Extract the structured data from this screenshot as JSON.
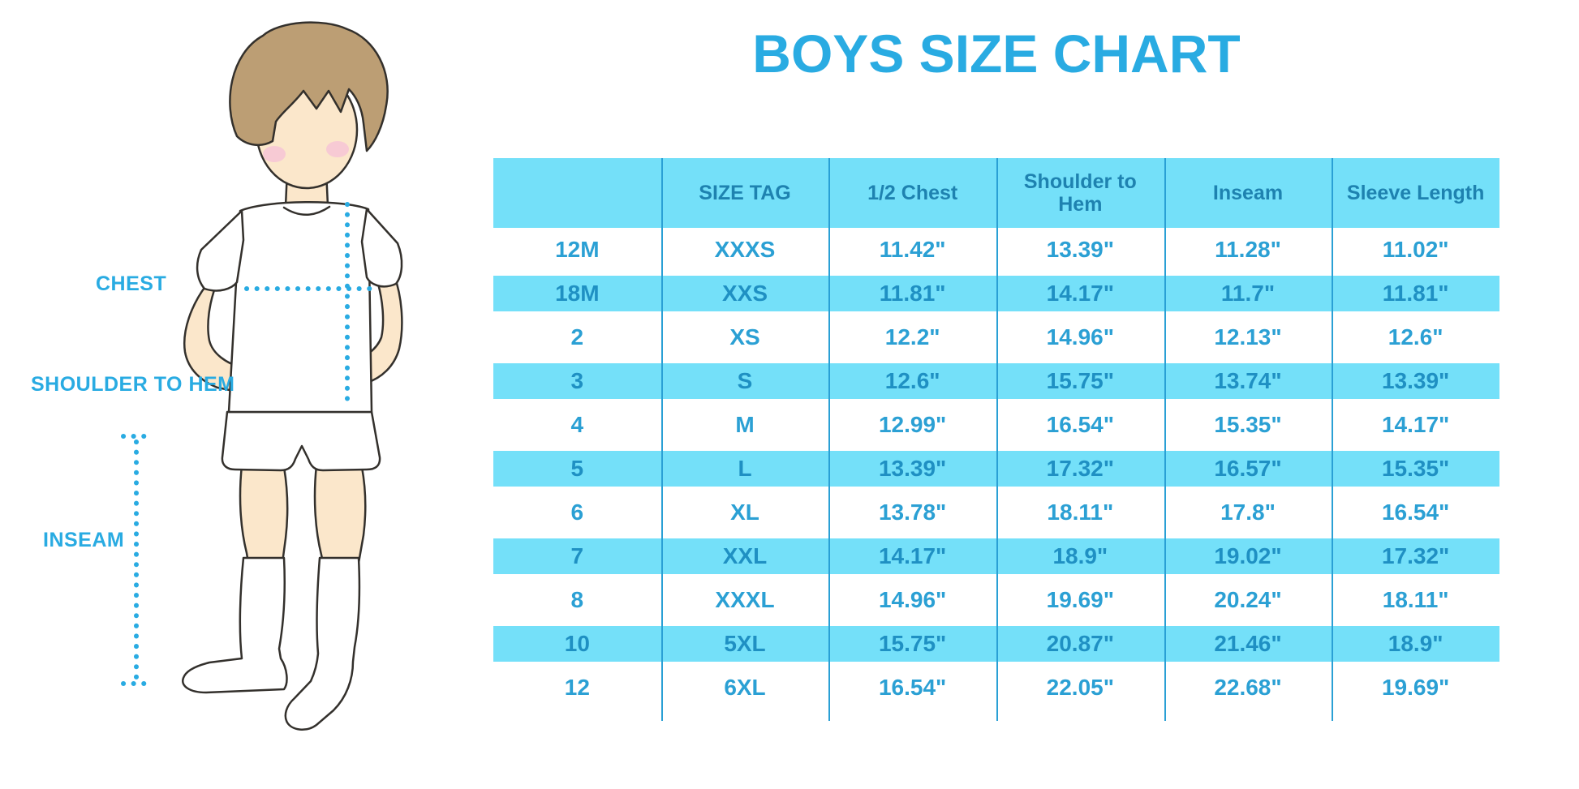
{
  "title": "BOYS SIZE CHART",
  "figure": {
    "labels": {
      "chest": "CHEST",
      "shoulder_to_hem": "SHOULDER TO HEM",
      "inseam": "INSEAM"
    }
  },
  "colors": {
    "accent": "#29ABE2",
    "table_stripe": "#74E0F9",
    "table_divider": "#2AA0D5",
    "header_text": "#1E82B0",
    "cell_text": "#2BA0D4",
    "striped_cell_text": "#1F90C3",
    "hair": "#BC9E74",
    "skin": "#FBE7CB",
    "cheek": "#F6C3D6",
    "outline": "#33302C"
  },
  "chart_data": {
    "type": "table",
    "title": "BOYS SIZE CHART",
    "units": "inches",
    "columns": [
      "",
      "SIZE TAG",
      "1/2 Chest",
      "Shoulder to Hem",
      "Inseam",
      "Sleeve Length"
    ],
    "rows": [
      [
        "12M",
        "XXXS",
        "11.42\"",
        "13.39\"",
        "11.28\"",
        "11.02\""
      ],
      [
        "18M",
        "XXS",
        "11.81\"",
        "14.17\"",
        "11.7\"",
        "11.81\""
      ],
      [
        "2",
        "XS",
        "12.2\"",
        "14.96\"",
        "12.13\"",
        "12.6\""
      ],
      [
        "3",
        "S",
        "12.6\"",
        "15.75\"",
        "13.74\"",
        "13.39\""
      ],
      [
        "4",
        "M",
        "12.99\"",
        "16.54\"",
        "15.35\"",
        "14.17\""
      ],
      [
        "5",
        "L",
        "13.39\"",
        "17.32\"",
        "16.57\"",
        "15.35\""
      ],
      [
        "6",
        "XL",
        "13.78\"",
        "18.11\"",
        "17.8\"",
        "16.54\""
      ],
      [
        "7",
        "XXL",
        "14.17\"",
        "18.9\"",
        "19.02\"",
        "17.32\""
      ],
      [
        "8",
        "XXXL",
        "14.96\"",
        "19.69\"",
        "20.24\"",
        "18.11\""
      ],
      [
        "10",
        "5XL",
        "15.75\"",
        "20.87\"",
        "21.46\"",
        "18.9\""
      ],
      [
        "12",
        "6XL",
        "16.54\"",
        "22.05\"",
        "22.68\"",
        "19.69\""
      ]
    ],
    "striped_row_indices": [
      1,
      3,
      5,
      7,
      9
    ]
  }
}
